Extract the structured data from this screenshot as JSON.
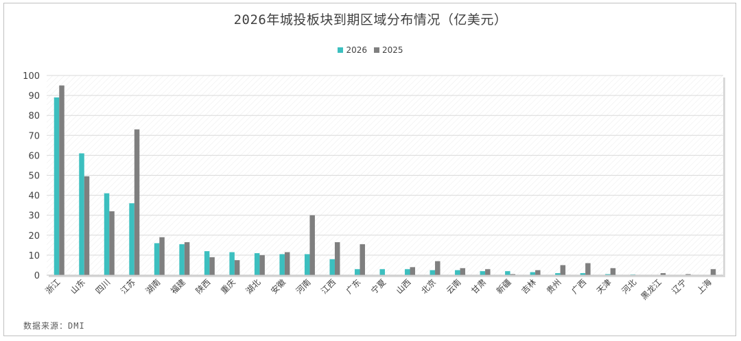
{
  "chart_data": {
    "type": "bar",
    "title": "2026年城投板块到期区域分布情况（亿美元）",
    "categories": [
      "浙江",
      "山东",
      "四川",
      "江苏",
      "湖南",
      "福建",
      "陕西",
      "重庆",
      "湖北",
      "安徽",
      "河南",
      "江西",
      "广东",
      "宁夏",
      "山西",
      "北京",
      "云南",
      "甘肃",
      "新疆",
      "吉林",
      "贵州",
      "广西",
      "天津",
      "河北",
      "黑龙江",
      "辽宁",
      "上海"
    ],
    "series": [
      {
        "name": "2026",
        "color": "#3cbfbf",
        "values": [
          89,
          61,
          41,
          36,
          16,
          15.5,
          12,
          11.5,
          11,
          10.5,
          10.5,
          8,
          3,
          3,
          3,
          2.5,
          2.5,
          2,
          2,
          1.5,
          1,
          1,
          0.5,
          0.3,
          0,
          0,
          0
        ]
      },
      {
        "name": "2025",
        "color": "#7f7f7f",
        "values": [
          95,
          49.5,
          32,
          73,
          19,
          16.5,
          9,
          7.5,
          10,
          11.5,
          30,
          16.5,
          15.5,
          0,
          4,
          7,
          3.5,
          3,
          0.5,
          2.5,
          5,
          6,
          3.5,
          0,
          1,
          0.5,
          3
        ]
      }
    ],
    "ylim": [
      0,
      100
    ],
    "yticks": [
      0,
      10,
      20,
      30,
      40,
      50,
      60,
      70,
      80,
      90,
      100
    ],
    "grid": true,
    "legend_position": "top-center",
    "source": "数据来源：DMI"
  }
}
